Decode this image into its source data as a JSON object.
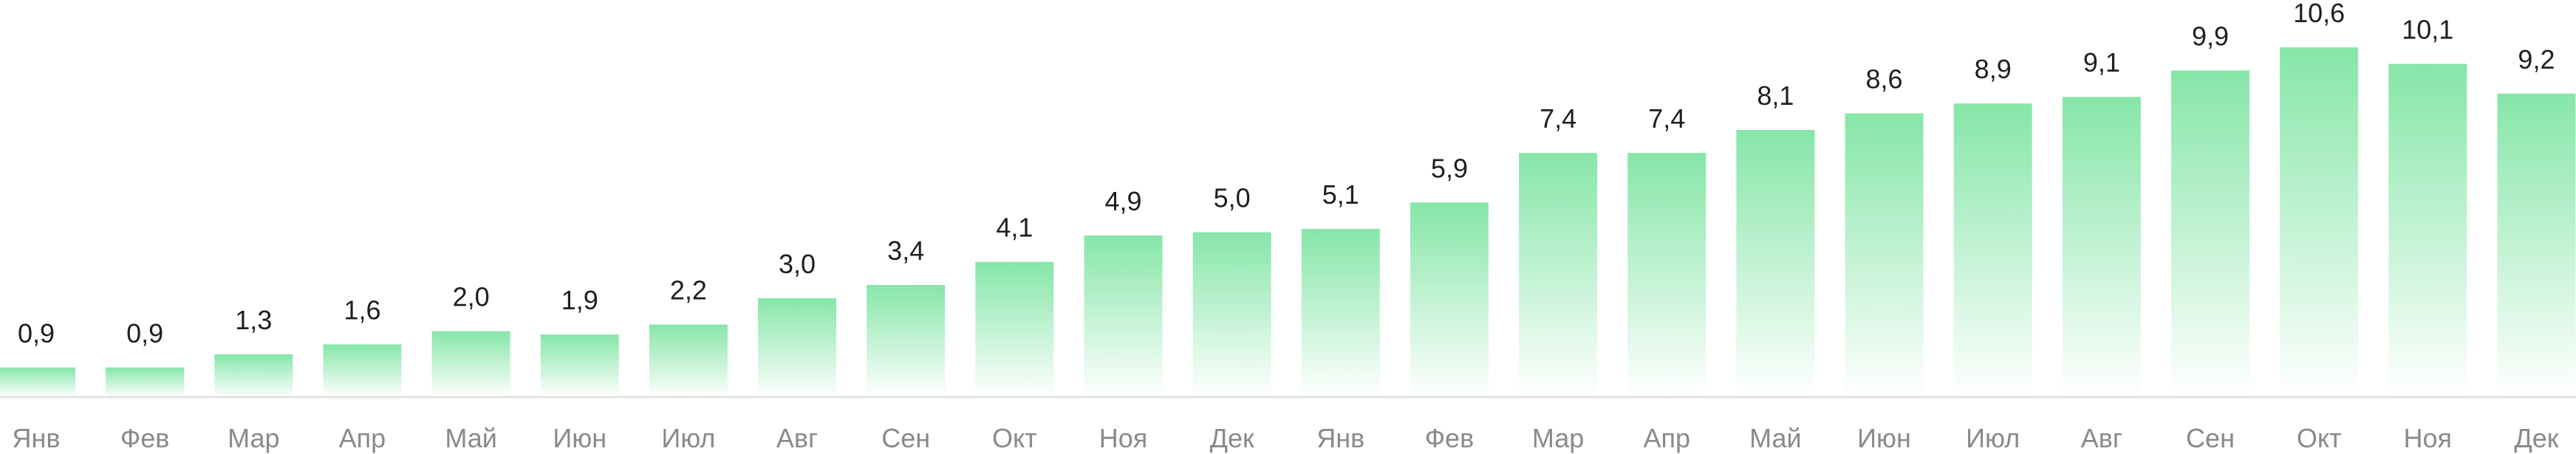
{
  "chart_data": {
    "type": "bar",
    "categories": [
      "Янв",
      "Фев",
      "Мар",
      "Апр",
      "Май",
      "Июн",
      "Июл",
      "Авг",
      "Сен",
      "Окт",
      "Ноя",
      "Дек",
      "Янв",
      "Фев",
      "Мар",
      "Апр",
      "Май",
      "Июн",
      "Июл",
      "Авг",
      "Сен",
      "Окт",
      "Ноя",
      "Дек"
    ],
    "values": [
      0.9,
      0.9,
      1.3,
      1.6,
      2.0,
      1.9,
      2.2,
      3.0,
      3.4,
      4.1,
      4.9,
      5.0,
      5.1,
      5.9,
      7.4,
      7.4,
      8.1,
      8.6,
      8.9,
      9.1,
      9.9,
      10.6,
      10.1,
      9.2
    ],
    "value_labels": [
      "0,9",
      "0,9",
      "1,3",
      "1,6",
      "2,0",
      "1,9",
      "2,2",
      "3,0",
      "3,4",
      "4,1",
      "4,9",
      "5,0",
      "5,1",
      "5,9",
      "7,4",
      "7,4",
      "8,1",
      "8,6",
      "8,9",
      "9,1",
      "9,9",
      "10,6",
      "10,1",
      "9,2"
    ],
    "title": "",
    "xlabel": "",
    "ylabel": "",
    "grid": false,
    "legend": "none",
    "colors": {
      "bar_top": "#86e6a8",
      "bar_bottom": "#ffffff",
      "axis": "#e2e2e2",
      "value_text": "#1f1f1f",
      "tick_text": "#8a8a8a"
    }
  }
}
